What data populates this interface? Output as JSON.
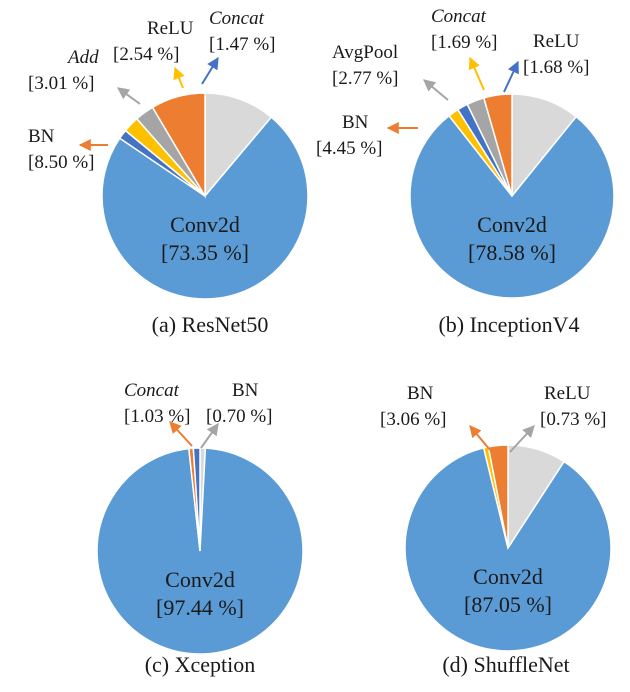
{
  "colors": {
    "Conv2d": "#5B9BD5",
    "BN": "#ED7D31",
    "Add": "#A5A5A5",
    "ReLU": "#FFC000",
    "Concat": "#4472C4",
    "AvgPool": "#A5A5A5",
    "other": "#D9D9D9"
  },
  "chart_data": [
    {
      "type": "pie",
      "title": "(a) ResNet50",
      "slices": [
        {
          "label": "Conv2d",
          "value": 73.35,
          "pct_text": "[73.35 %]",
          "italic": false
        },
        {
          "label": "BN",
          "value": 8.5,
          "pct_text": "[8.50 %]",
          "italic": false
        },
        {
          "label": "Add",
          "value": 3.01,
          "pct_text": "[3.01 %]",
          "italic": true
        },
        {
          "label": "ReLU",
          "value": 2.54,
          "pct_text": "[2.54 %]",
          "italic": false
        },
        {
          "label": "Concat",
          "value": 1.47,
          "pct_text": "[1.47 %]",
          "italic": true
        }
      ]
    },
    {
      "type": "pie",
      "title": "(b) InceptionV4",
      "slices": [
        {
          "label": "Conv2d",
          "value": 78.58,
          "pct_text": "[78.58 %]",
          "italic": false
        },
        {
          "label": "BN",
          "value": 4.45,
          "pct_text": "[4.45 %]",
          "italic": false
        },
        {
          "label": "AvgPool",
          "value": 2.77,
          "pct_text": "[2.77 %]",
          "italic": false
        },
        {
          "label": "Concat",
          "value": 1.69,
          "pct_text": "[1.69 %]",
          "italic": true
        },
        {
          "label": "ReLU",
          "value": 1.68,
          "pct_text": "[1.68 %]",
          "italic": false
        }
      ]
    },
    {
      "type": "pie",
      "title": "(c) Xception",
      "slices": [
        {
          "label": "Conv2d",
          "value": 97.44,
          "pct_text": "[97.44 %]",
          "italic": false
        },
        {
          "label": "Concat",
          "value": 1.03,
          "pct_text": "[1.03 %]",
          "italic": true
        },
        {
          "label": "BN",
          "value": 0.7,
          "pct_text": "[0.70 %]",
          "italic": false
        }
      ]
    },
    {
      "type": "pie",
      "title": "(d) ShuffleNet",
      "slices": [
        {
          "label": "Conv2d",
          "value": 87.05,
          "pct_text": "[87.05 %]",
          "italic": false
        },
        {
          "label": "BN",
          "value": 3.06,
          "pct_text": "[3.06 %]",
          "italic": false
        },
        {
          "label": "ReLU",
          "value": 0.73,
          "pct_text": "[0.73 %]",
          "italic": false
        }
      ]
    }
  ]
}
